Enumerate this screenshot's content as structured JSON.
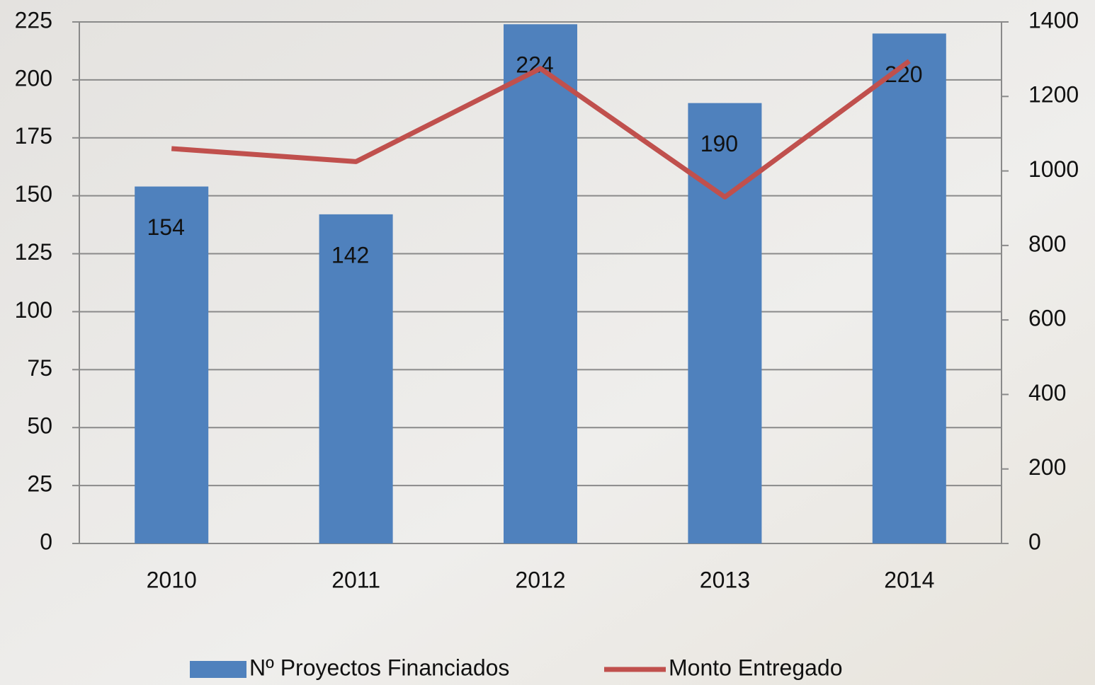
{
  "chart_data": {
    "type": "bar",
    "categories": [
      "2010",
      "2011",
      "2012",
      "2013",
      "2014"
    ],
    "series": [
      {
        "name": "Nº Proyectos Financiados",
        "color": "#4f81bd",
        "values": [
          154,
          142,
          224,
          190,
          220
        ]
      },
      {
        "name": "Monto Entregado",
        "color": "#c0504d",
        "type": "line",
        "axis": "y2",
        "values": [
          1060,
          1025,
          1275,
          930,
          1295
        ]
      }
    ],
    "ylim": [
      0,
      225
    ],
    "yticks": [
      0,
      25,
      50,
      75,
      100,
      125,
      150,
      175,
      200,
      225
    ],
    "y2lim": [
      0,
      1400
    ],
    "y2ticks": [
      0,
      200,
      400,
      600,
      800,
      1000,
      1200,
      1400
    ],
    "grid": true,
    "legend": "bottom",
    "data_labels": true
  }
}
